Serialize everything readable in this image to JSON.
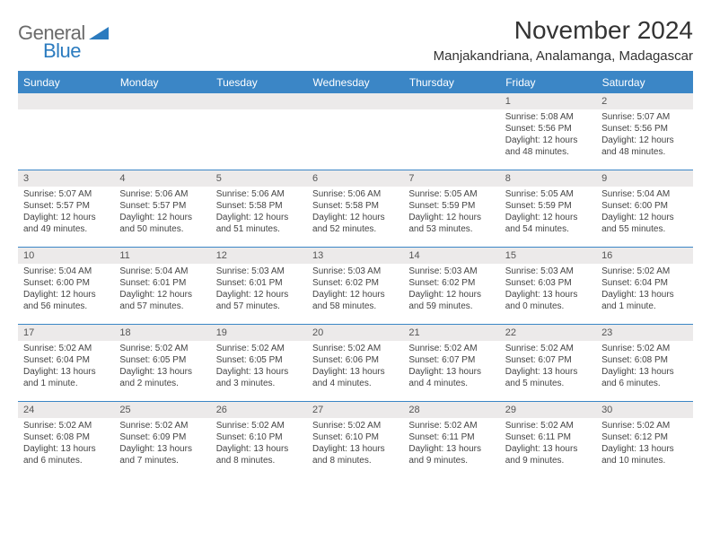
{
  "logo": {
    "gray": "General",
    "blue": "Blue"
  },
  "title": "November 2024",
  "location": "Manjakandriana, Analamanga, Madagascar",
  "weekdays": [
    "Sunday",
    "Monday",
    "Tuesday",
    "Wednesday",
    "Thursday",
    "Friday",
    "Saturday"
  ],
  "colors": {
    "header_bg": "#3b86c6",
    "header_text": "#ffffff",
    "daynum_bg": "#eceaea",
    "border": "#3b86c6",
    "logo_gray": "#6b6b6b",
    "logo_blue": "#2b7bbf",
    "text": "#333333"
  },
  "weeks": [
    [
      null,
      null,
      null,
      null,
      null,
      {
        "n": "1",
        "r": "5:08 AM",
        "s": "5:56 PM",
        "d": "12 hours and 48 minutes."
      },
      {
        "n": "2",
        "r": "5:07 AM",
        "s": "5:56 PM",
        "d": "12 hours and 48 minutes."
      }
    ],
    [
      {
        "n": "3",
        "r": "5:07 AM",
        "s": "5:57 PM",
        "d": "12 hours and 49 minutes."
      },
      {
        "n": "4",
        "r": "5:06 AM",
        "s": "5:57 PM",
        "d": "12 hours and 50 minutes."
      },
      {
        "n": "5",
        "r": "5:06 AM",
        "s": "5:58 PM",
        "d": "12 hours and 51 minutes."
      },
      {
        "n": "6",
        "r": "5:06 AM",
        "s": "5:58 PM",
        "d": "12 hours and 52 minutes."
      },
      {
        "n": "7",
        "r": "5:05 AM",
        "s": "5:59 PM",
        "d": "12 hours and 53 minutes."
      },
      {
        "n": "8",
        "r": "5:05 AM",
        "s": "5:59 PM",
        "d": "12 hours and 54 minutes."
      },
      {
        "n": "9",
        "r": "5:04 AM",
        "s": "6:00 PM",
        "d": "12 hours and 55 minutes."
      }
    ],
    [
      {
        "n": "10",
        "r": "5:04 AM",
        "s": "6:00 PM",
        "d": "12 hours and 56 minutes."
      },
      {
        "n": "11",
        "r": "5:04 AM",
        "s": "6:01 PM",
        "d": "12 hours and 57 minutes."
      },
      {
        "n": "12",
        "r": "5:03 AM",
        "s": "6:01 PM",
        "d": "12 hours and 57 minutes."
      },
      {
        "n": "13",
        "r": "5:03 AM",
        "s": "6:02 PM",
        "d": "12 hours and 58 minutes."
      },
      {
        "n": "14",
        "r": "5:03 AM",
        "s": "6:02 PM",
        "d": "12 hours and 59 minutes."
      },
      {
        "n": "15",
        "r": "5:03 AM",
        "s": "6:03 PM",
        "d": "13 hours and 0 minutes."
      },
      {
        "n": "16",
        "r": "5:02 AM",
        "s": "6:04 PM",
        "d": "13 hours and 1 minute."
      }
    ],
    [
      {
        "n": "17",
        "r": "5:02 AM",
        "s": "6:04 PM",
        "d": "13 hours and 1 minute."
      },
      {
        "n": "18",
        "r": "5:02 AM",
        "s": "6:05 PM",
        "d": "13 hours and 2 minutes."
      },
      {
        "n": "19",
        "r": "5:02 AM",
        "s": "6:05 PM",
        "d": "13 hours and 3 minutes."
      },
      {
        "n": "20",
        "r": "5:02 AM",
        "s": "6:06 PM",
        "d": "13 hours and 4 minutes."
      },
      {
        "n": "21",
        "r": "5:02 AM",
        "s": "6:07 PM",
        "d": "13 hours and 4 minutes."
      },
      {
        "n": "22",
        "r": "5:02 AM",
        "s": "6:07 PM",
        "d": "13 hours and 5 minutes."
      },
      {
        "n": "23",
        "r": "5:02 AM",
        "s": "6:08 PM",
        "d": "13 hours and 6 minutes."
      }
    ],
    [
      {
        "n": "24",
        "r": "5:02 AM",
        "s": "6:08 PM",
        "d": "13 hours and 6 minutes."
      },
      {
        "n": "25",
        "r": "5:02 AM",
        "s": "6:09 PM",
        "d": "13 hours and 7 minutes."
      },
      {
        "n": "26",
        "r": "5:02 AM",
        "s": "6:10 PM",
        "d": "13 hours and 8 minutes."
      },
      {
        "n": "27",
        "r": "5:02 AM",
        "s": "6:10 PM",
        "d": "13 hours and 8 minutes."
      },
      {
        "n": "28",
        "r": "5:02 AM",
        "s": "6:11 PM",
        "d": "13 hours and 9 minutes."
      },
      {
        "n": "29",
        "r": "5:02 AM",
        "s": "6:11 PM",
        "d": "13 hours and 9 minutes."
      },
      {
        "n": "30",
        "r": "5:02 AM",
        "s": "6:12 PM",
        "d": "13 hours and 10 minutes."
      }
    ]
  ],
  "labels": {
    "sunrise": "Sunrise:",
    "sunset": "Sunset:",
    "daylight": "Daylight:"
  }
}
